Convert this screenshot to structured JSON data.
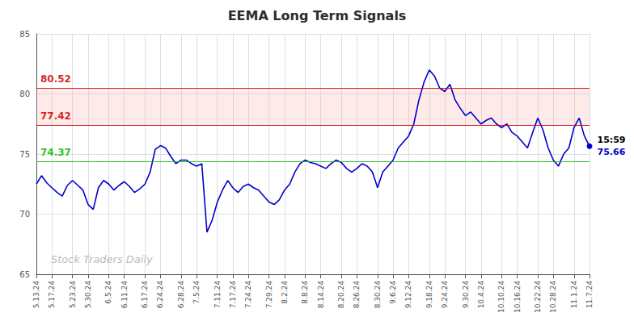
{
  "chart_data": {
    "type": "line",
    "title": "EEMA Long Term Signals",
    "categories": [
      "5.13.24",
      null,
      null,
      "5.17.24",
      null,
      null,
      null,
      "5.23.24",
      null,
      null,
      "5.30.24",
      null,
      null,
      null,
      "6.5.24",
      null,
      null,
      "6.11.24",
      null,
      null,
      null,
      "6.17.24",
      null,
      null,
      "6.24.24",
      null,
      null,
      null,
      "6.28.24",
      null,
      null,
      "7.5.24",
      null,
      null,
      null,
      "7.11.24",
      null,
      null,
      "7.17.24",
      null,
      null,
      "7.24.24",
      null,
      null,
      null,
      "7.29.24",
      null,
      null,
      "8.2.24",
      null,
      null,
      null,
      "8.8.24",
      null,
      null,
      "8.14.24",
      null,
      null,
      null,
      "8.20.24",
      null,
      null,
      "8.26.24",
      null,
      null,
      null,
      "8.30.24",
      null,
      null,
      "9.6.24",
      null,
      null,
      "9.12.24",
      null,
      null,
      null,
      "9.18.24",
      null,
      null,
      "9.24.24",
      null,
      null,
      null,
      "9.30.24",
      null,
      null,
      "10.4.24",
      null,
      null,
      null,
      "10.10.24",
      null,
      null,
      "10.16.24",
      null,
      null,
      null,
      "10.22.24",
      null,
      null,
      "10.28.24",
      null,
      null,
      null,
      "11.1.24",
      null,
      null,
      "11.7.24"
    ],
    "values": [
      72.5,
      73.2,
      72.6,
      72.2,
      71.8,
      71.5,
      72.4,
      72.8,
      72.4,
      72.0,
      70.8,
      70.4,
      72.2,
      72.8,
      72.5,
      72.0,
      72.4,
      72.7,
      72.3,
      71.8,
      72.1,
      72.5,
      73.5,
      75.4,
      75.7,
      75.5,
      74.8,
      74.2,
      74.5,
      74.5,
      74.2,
      74.0,
      74.2,
      68.5,
      69.5,
      71.0,
      72.0,
      72.8,
      72.2,
      71.8,
      72.3,
      72.5,
      72.2,
      72.0,
      71.5,
      71.0,
      70.8,
      71.2,
      72.0,
      72.5,
      73.5,
      74.2,
      74.5,
      74.3,
      74.2,
      74.0,
      73.8,
      74.2,
      74.5,
      74.3,
      73.8,
      73.5,
      73.8,
      74.2,
      74.0,
      73.5,
      72.2,
      73.5,
      74.0,
      74.5,
      75.5,
      76.0,
      76.5,
      77.5,
      79.5,
      81.0,
      82.0,
      81.5,
      80.5,
      80.2,
      80.8,
      79.5,
      78.8,
      78.2,
      78.5,
      78.0,
      77.5,
      77.8,
      78.0,
      77.5,
      77.2,
      77.5,
      76.8,
      76.5,
      76.0,
      75.5,
      76.8,
      78.0,
      77.0,
      75.5,
      74.5,
      74.0,
      75.0,
      75.5,
      77.2,
      78.0,
      76.5,
      75.66
    ],
    "color": "#0000cc",
    "ylim": [
      65,
      85
    ],
    "yticks": [
      65,
      70,
      75,
      80,
      85
    ],
    "grid": true,
    "reference_lines": [
      {
        "y": 80.52,
        "color": "#cc0000",
        "label": "80.52"
      },
      {
        "y": 77.42,
        "color": "#cc0000",
        "label": "77.42"
      },
      {
        "y": 74.37,
        "color": "#00bb00",
        "label": "74.37"
      }
    ],
    "band": {
      "from": 77.42,
      "to": 80.52,
      "color": "#ffaaaa"
    },
    "last_point_labels": [
      {
        "text": "15:59",
        "color": "#000000"
      },
      {
        "text": "75.66",
        "color": "#0000cc"
      }
    ],
    "watermark": "Stock Traders Daily"
  }
}
